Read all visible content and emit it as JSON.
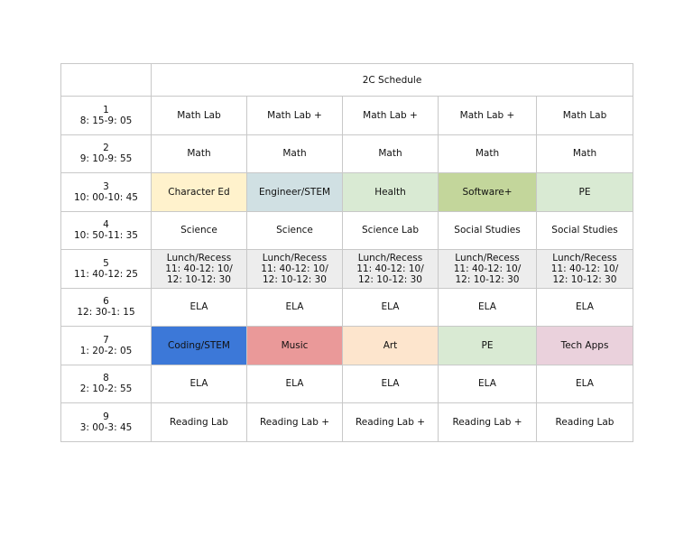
{
  "title": "2C Schedule",
  "colors": {
    "cream": "#fff2cc",
    "slate": "#d0e0e3",
    "mint": "#d9ead3",
    "olive": "#c3d69b",
    "blue": "#3c78d8",
    "rose": "#ea9999",
    "peach": "#fde5cd",
    "mauve": "#ead1dc",
    "gray": "#ededed"
  },
  "rows": [
    {
      "period": {
        "num": "1",
        "time": "8: 15-9: 05"
      },
      "cells": [
        {
          "text": "Math Lab"
        },
        {
          "text": "Math Lab +",
          "small": true
        },
        {
          "text": "Math Lab +",
          "small": true
        },
        {
          "text": "Math Lab +",
          "small": true
        },
        {
          "text": "Math Lab"
        }
      ]
    },
    {
      "period": {
        "num": "2",
        "time": "9: 10-9: 55"
      },
      "cells": [
        {
          "text": "Math"
        },
        {
          "text": "Math"
        },
        {
          "text": "Math"
        },
        {
          "text": "Math"
        },
        {
          "text": "Math"
        }
      ]
    },
    {
      "period": {
        "num": "3",
        "time": "10: 00-10: 45"
      },
      "cells": [
        {
          "text": "Character Ed",
          "color": "cream"
        },
        {
          "text": "Engineer/STEM",
          "color": "slate",
          "small": true
        },
        {
          "text": "Health",
          "color": "mint"
        },
        {
          "text": "Software+",
          "color": "olive"
        },
        {
          "text": "PE",
          "color": "mint"
        }
      ]
    },
    {
      "period": {
        "num": "4",
        "time": "10: 50-11: 35"
      },
      "cells": [
        {
          "text": "Science"
        },
        {
          "text": "Science"
        },
        {
          "text": "Science Lab"
        },
        {
          "text": "Social Studies"
        },
        {
          "text": "Social Studies"
        }
      ]
    },
    {
      "period": {
        "num": "5",
        "time": "11: 40-12: 25"
      },
      "lunch": true,
      "cells": [
        {
          "lines": [
            "Lunch/Recess",
            "11: 40-12: 10/",
            "12: 10-12: 30"
          ]
        },
        {
          "lines": [
            "Lunch/Recess",
            "11: 40-12: 10/",
            "12: 10-12: 30"
          ]
        },
        {
          "lines": [
            "Lunch/Recess",
            "11: 40-12: 10/",
            "12: 10-12: 30"
          ]
        },
        {
          "lines": [
            "Lunch/Recess",
            "11: 40-12: 10/",
            "12: 10-12: 30"
          ]
        },
        {
          "lines": [
            "Lunch/Recess",
            "11: 40-12: 10/",
            "12: 10-12: 30"
          ]
        }
      ]
    },
    {
      "period": {
        "num": "6",
        "time": "12: 30-1: 15"
      },
      "cells": [
        {
          "text": "ELA"
        },
        {
          "text": "ELA"
        },
        {
          "text": "ELA"
        },
        {
          "text": "ELA"
        },
        {
          "text": "ELA"
        }
      ]
    },
    {
      "period": {
        "num": "7",
        "time": "1: 20-2: 05"
      },
      "cells": [
        {
          "text": "Coding/STEM",
          "color": "blue",
          "small": true
        },
        {
          "text": "Music",
          "color": "rose"
        },
        {
          "text": "Art",
          "color": "peach"
        },
        {
          "text": "PE",
          "color": "mint"
        },
        {
          "text": "Tech Apps",
          "color": "mauve"
        }
      ]
    },
    {
      "period": {
        "num": "8",
        "time": "2: 10-2: 55"
      },
      "cells": [
        {
          "text": "ELA"
        },
        {
          "text": "ELA"
        },
        {
          "text": "ELA"
        },
        {
          "text": "ELA"
        },
        {
          "text": "ELA"
        }
      ]
    },
    {
      "period": {
        "num": "9",
        "time": "3: 00-3: 45"
      },
      "cells": [
        {
          "text": "Reading Lab"
        },
        {
          "text": "Reading Lab +",
          "small": true
        },
        {
          "text": "Reading Lab +",
          "small": true
        },
        {
          "text": "Reading Lab +",
          "small": true
        },
        {
          "text": "Reading Lab"
        }
      ]
    }
  ]
}
